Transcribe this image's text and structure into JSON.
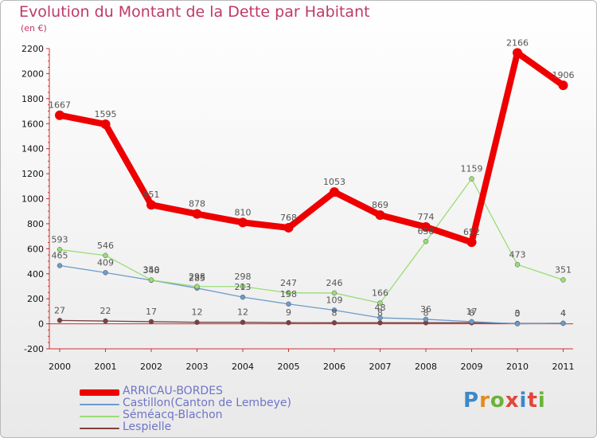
{
  "title": "Evolution du Montant de la Dette par Habitant",
  "unit": "(en €)",
  "logo": {
    "text": "Proxiti",
    "colors": [
      "#3d88c8",
      "#e38b1e",
      "#6bb33a",
      "#e2463c",
      "#3d88c8",
      "#e2463c",
      "#6bb33a"
    ]
  },
  "chart_data": {
    "type": "line",
    "x": [
      2000,
      2001,
      2002,
      2003,
      2004,
      2005,
      2006,
      2007,
      2008,
      2009,
      2010,
      2011
    ],
    "ylim": [
      -200,
      2200
    ],
    "yticks": [
      -200,
      0,
      200,
      400,
      600,
      800,
      1000,
      1200,
      1400,
      1600,
      1800,
      2000,
      2200
    ],
    "grid": false,
    "legend": "bottom-left",
    "series": [
      {
        "name": "ARRICAU-BORDES",
        "color": "#ee0000",
        "values": [
          1667,
          1595,
          951,
          878,
          810,
          768,
          1053,
          869,
          774,
          652,
          2166,
          1906
        ],
        "labels": [
          "1667",
          "1595",
          "951",
          "878",
          "810",
          "768",
          "1053",
          "869",
          "774",
          "652",
          "2166",
          "1906"
        ]
      },
      {
        "name": "Castillon(Canton de Lembeye)",
        "color": "#6b9bcb",
        "values": [
          465,
          409,
          348,
          285,
          213,
          158,
          109,
          48,
          36,
          17,
          0,
          4
        ],
        "labels": [
          "465",
          "409",
          "348",
          "285",
          "213",
          "158",
          "109",
          "48",
          "36",
          "17",
          "0",
          "4"
        ]
      },
      {
        "name": "Séméacq-Blachon",
        "color": "#99dd77",
        "values": [
          593,
          546,
          350,
          298,
          298,
          247,
          246,
          166,
          658,
          1159,
          473,
          351
        ],
        "labels": [
          "593",
          "546",
          "350",
          "298",
          "298",
          "247",
          "246",
          "166",
          "658",
          "1159",
          "473",
          "351"
        ]
      },
      {
        "name": "Lespielle",
        "color": "#7f3f3f",
        "values": [
          27,
          22,
          17,
          12,
          12,
          9,
          8,
          8,
          8,
          8,
          3,
          4
        ],
        "labels": [
          "27",
          "22",
          "17",
          "12",
          "12",
          "9",
          "8",
          "8",
          "8",
          "8",
          "3",
          "4"
        ]
      }
    ]
  }
}
